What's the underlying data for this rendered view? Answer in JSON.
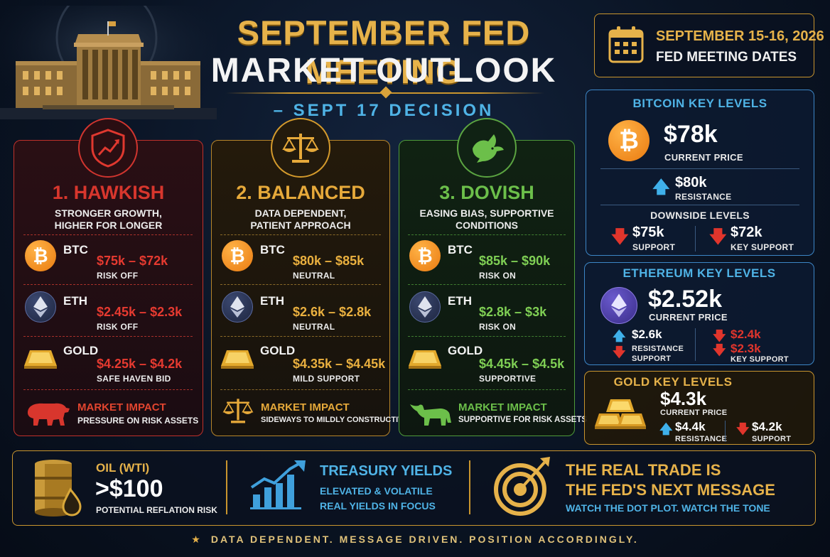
{
  "header": {
    "title_line1": "SEPTEMBER FED MEETING",
    "title_line2": "MARKET OUTLOOK",
    "subtitle": "– SEPT 17 DECISION",
    "date": "SEPTEMBER 15-16, 2026",
    "date_label": "FED MEETING DATES"
  },
  "scenarios": [
    {
      "title": "1. HAWKISH",
      "desc1": "STRONGER GROWTH,",
      "desc2": "HIGHER FOR LONGER",
      "accent": "#d8362d",
      "assets": [
        {
          "name": "BTC",
          "range": "$75k – $72k",
          "mood": "RISK OFF"
        },
        {
          "name": "ETH",
          "range": "$2.45k – $2.3k",
          "mood": "RISK OFF"
        },
        {
          "name": "GOLD",
          "range": "$4.25k – $4.2k",
          "mood": "SAFE HAVEN BID"
        }
      ],
      "impact_title": "MARKET IMPACT",
      "impact_desc": "PRESSURE ON RISK ASSETS"
    },
    {
      "title": "2. BALANCED",
      "desc1": "DATA DEPENDENT,",
      "desc2": "PATIENT APPROACH",
      "accent": "#e6a93a",
      "assets": [
        {
          "name": "BTC",
          "range": "$80k – $85k",
          "mood": "NEUTRAL"
        },
        {
          "name": "ETH",
          "range": "$2.6k – $2.8k",
          "mood": "NEUTRAL"
        },
        {
          "name": "GOLD",
          "range": "$4.35k – $4.45k",
          "mood": "MILD SUPPORT"
        }
      ],
      "impact_title": "MARKET IMPACT",
      "impact_desc": "SIDEWAYS TO MILDLY CONSTRUCTIVE"
    },
    {
      "title": "3. DOVISH",
      "desc1": "EASING BIAS, SUPPORTIVE",
      "desc2": "CONDITIONS",
      "accent": "#6cbf4a",
      "assets": [
        {
          "name": "BTC",
          "range": "$85k – $90k",
          "mood": "RISK ON"
        },
        {
          "name": "ETH",
          "range": "$2.8k – $3k",
          "mood": "RISK ON"
        },
        {
          "name": "GOLD",
          "range": "$4.45k – $4.5k",
          "mood": "SUPPORTIVE"
        }
      ],
      "impact_title": "MARKET IMPACT",
      "impact_desc": "SUPPORTIVE FOR RISK ASSETS"
    }
  ],
  "btc_levels": {
    "title": "BITCOIN KEY LEVELS",
    "price": "$78k",
    "price_label": "CURRENT PRICE",
    "resistance": "$80k",
    "resistance_label": "RESISTANCE",
    "downside_title": "DOWNSIDE LEVELS",
    "support": "$75k",
    "support_label": "SUPPORT",
    "key_support": "$72k",
    "key_support_label": "KEY SUPPORT"
  },
  "eth_levels": {
    "title": "ETHEREUM KEY LEVELS",
    "price": "$2.52k",
    "price_label": "CURRENT PRICE",
    "resistance": "$2.6k",
    "resistance_label": "RESISTANCE",
    "support_label": "SUPPORT",
    "level1": "$2.4k",
    "level2": "$2.3k",
    "key_support_label": "KEY SUPPORT"
  },
  "gold_levels": {
    "title": "GOLD KEY LEVELS",
    "price": "$4.3k",
    "price_label": "CURRENT PRICE",
    "resistance": "$4.4k",
    "resistance_label": "RESISTANCE",
    "support": "$4.2k",
    "support_label": "SUPPORT"
  },
  "bottom": {
    "oil_title": "OIL (WTI)",
    "oil_value": ">$100",
    "oil_desc": "POTENTIAL REFLATION RISK",
    "yields_title": "TREASURY YIELDS",
    "yields_line1": "ELEVATED & VOLATILE",
    "yields_line2": "REAL YIELDS IN FOCUS",
    "trade_line1": "THE REAL TRADE IS",
    "trade_line2": "THE FED'S NEXT MESSAGE",
    "trade_desc": "WATCH THE DOT PLOT. WATCH THE TONE"
  },
  "footer": "DATA DEPENDENT. MESSAGE DRIVEN. POSITION ACCORDINGLY.",
  "colors": {
    "gold": "#e6b24a",
    "blue": "#4fb3e6",
    "red": "#d8362d",
    "green": "#6cbf4a"
  }
}
